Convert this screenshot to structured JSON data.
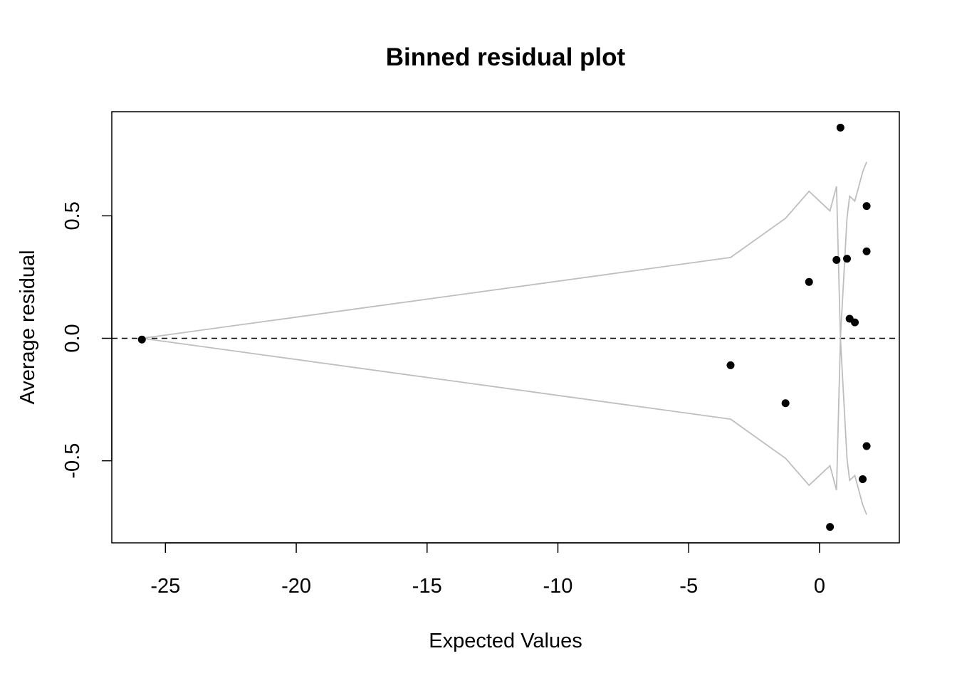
{
  "chart_data": {
    "type": "scatter",
    "title": "Binned residual plot",
    "xlabel": "Expected Values",
    "ylabel": "Average residual",
    "xlim": [
      -27.05,
      3.05
    ],
    "ylim": [
      -0.835,
      0.925
    ],
    "x_ticks": [
      -25,
      -20,
      -15,
      -10,
      -5,
      0
    ],
    "x_tick_labels": [
      "-25",
      "-20",
      "-15",
      "-10",
      "-5",
      "0"
    ],
    "y_ticks": [
      -0.5,
      0.0,
      0.5
    ],
    "y_tick_labels": [
      "-0.5",
      "0.0",
      "0.5"
    ],
    "reference_line": {
      "y": 0,
      "style": "dashed",
      "color": "#000000"
    },
    "points": {
      "color": "#000000",
      "x": [
        -25.9,
        -3.4,
        -1.3,
        -0.4,
        0.4,
        0.65,
        0.8,
        1.05,
        1.15,
        1.35,
        1.65,
        1.8,
        1.8,
        1.8
      ],
      "y": [
        -0.005,
        -0.11,
        -0.265,
        0.23,
        -0.77,
        0.32,
        0.86,
        0.325,
        0.08,
        0.065,
        -0.575,
        0.54,
        0.355,
        -0.44
      ]
    },
    "bounds": {
      "color": "#bebebe",
      "x": [
        -25.9,
        -3.4,
        -1.3,
        -0.4,
        0.4,
        0.65,
        0.8,
        1.05,
        1.15,
        1.35,
        1.65,
        1.8
      ],
      "upper": [
        0,
        0.33,
        0.49,
        0.6,
        0.52,
        0.62,
        0,
        0.49,
        0.58,
        0.56,
        0.68,
        0.72
      ],
      "lower": [
        0,
        -0.33,
        -0.49,
        -0.6,
        -0.52,
        -0.62,
        0,
        -0.49,
        -0.58,
        -0.56,
        -0.68,
        -0.72
      ]
    }
  }
}
